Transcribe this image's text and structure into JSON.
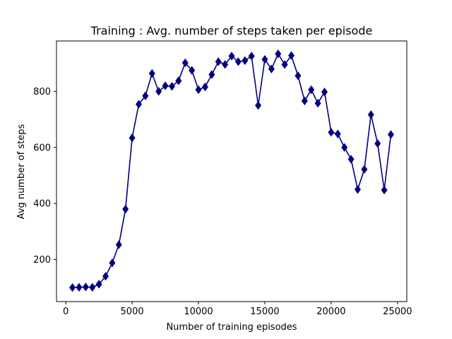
{
  "chart_data": {
    "type": "line",
    "title": "Training : Avg. number of steps taken per episode",
    "xlabel": "Number of training episodes",
    "ylabel": "Avg number of steps",
    "xlim": [
      -700,
      25700
    ],
    "ylim": [
      50,
      980
    ],
    "xticks": [
      0,
      5000,
      10000,
      15000,
      20000,
      25000
    ],
    "yticks": [
      200,
      400,
      600,
      800
    ],
    "grid": false,
    "legend": "none",
    "marker": "diamond",
    "color": "#000080",
    "series": [
      {
        "x": [
          500,
          1000,
          1500,
          2000,
          2500,
          3000,
          3500,
          4000,
          4500,
          5000,
          5500,
          6000,
          6500,
          7000,
          7500,
          8000,
          8500,
          9000,
          9500,
          10000,
          10500,
          11000,
          11500,
          12000,
          12500,
          13000,
          13500,
          14000,
          14500,
          15000,
          15500,
          16000,
          16500,
          17000,
          17500,
          18000,
          18500,
          19000,
          19500,
          20000,
          20500,
          21000,
          21500,
          22000,
          22500,
          23000,
          23500,
          24000,
          24500
        ],
        "y": [
          100,
          101,
          102,
          101,
          112,
          140,
          188,
          253,
          380,
          634,
          754,
          784,
          864,
          800,
          820,
          818,
          838,
          902,
          875,
          806,
          816,
          860,
          906,
          896,
          926,
          906,
          910,
          926,
          750,
          914,
          880,
          934,
          896,
          928,
          856,
          766,
          806,
          758,
          798,
          654,
          648,
          600,
          558,
          450,
          522,
          717,
          614,
          448,
          646
        ]
      }
    ]
  }
}
